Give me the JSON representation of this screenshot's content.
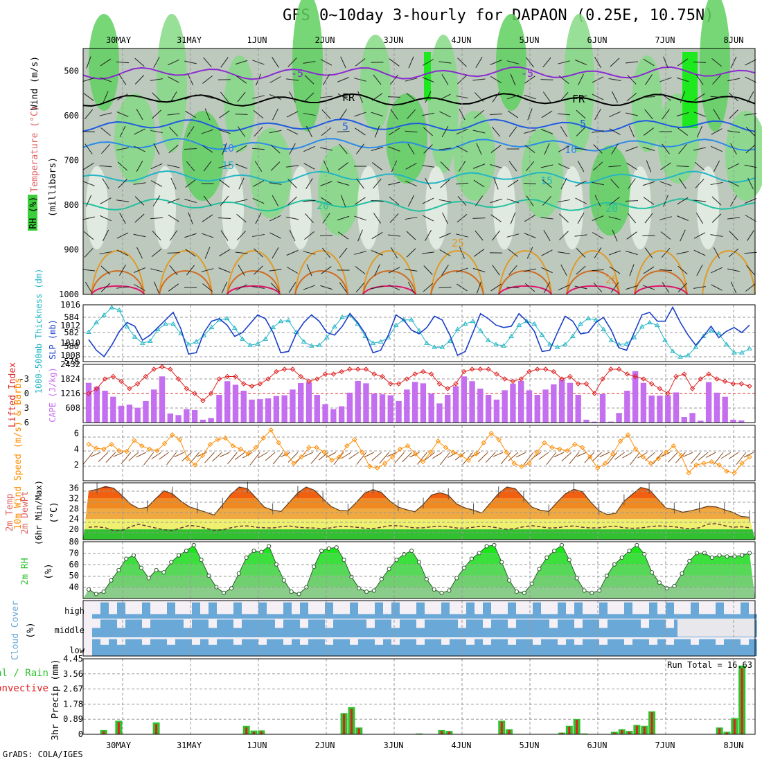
{
  "title": "GFS 0~10day 3-hourly for DAPAON (0.25E, 10.75N)",
  "credit": "GrADS: COLA/IGES",
  "colors": {
    "rh": "#2ec22e",
    "temp_lines": "#e08a1a",
    "wind": "#ff8c00",
    "cape": "#c46ef0",
    "lifted": "#e02020",
    "thick": "#20b5c5",
    "slp": "#1a3fc8",
    "cloud": "#6aa8d8",
    "precip_total": "#2ec22e",
    "precip_conv": "#e02020"
  },
  "chart_data": [
    {
      "type": "heatmap",
      "panel": "upper-air",
      "ylabel_parts": [
        "RH (%)",
        "Temperature (°C)",
        "Wind (m/s)"
      ],
      "ylabel2": "(millibars)",
      "x_ticks": [
        "30MAY",
        "31MAY",
        "1JUN",
        "2JUN",
        "3JUN",
        "4JUN",
        "5JUN",
        "6JUN",
        "7JUN",
        "8JUN"
      ],
      "y_ticks": [
        "500",
        "600",
        "700",
        "800",
        "900",
        "1000"
      ],
      "ylim": [
        1000,
        450
      ],
      "contour_labels": [
        "-5",
        "-5",
        "FR",
        "FR",
        "5",
        "5",
        "10",
        "10",
        "15",
        "15",
        "20",
        "20",
        "25",
        "25"
      ]
    },
    {
      "type": "line",
      "panel": "thickness-slp",
      "ylabel_left": "1000-500mb Thickness (dm)",
      "ylabel_right": "SLP (mb)",
      "y_left_ticks": [
        "584",
        "582",
        "580",
        "578"
      ],
      "y_right_ticks": [
        "1016",
        "1012",
        "1010",
        "1008"
      ],
      "series": [
        {
          "name": "1000-500mb Thickness (dm)",
          "values": [
            581.8,
            583.2,
            584.3,
            585.4,
            585.0,
            582.6,
            581.1,
            580.2,
            580.5,
            582.2,
            583.0,
            583.0,
            581.6,
            580.0,
            580.4,
            581.3,
            582.5,
            583.6,
            583.8,
            582.4,
            580.8,
            579.9,
            580.1,
            580.8,
            582.5,
            583.4,
            583.5,
            581.8,
            580.4,
            579.8,
            579.9,
            581.0,
            582.6,
            584.0,
            584.3,
            583.0,
            581.2,
            580.2,
            580.4,
            581.0,
            582.8,
            583.6,
            583.6,
            582.0,
            580.2,
            579.6,
            579.6,
            580.5,
            582.2,
            583.0,
            583.4,
            582.0,
            580.6,
            580.0,
            579.8,
            581.2,
            582.8,
            583.4,
            583.0,
            581.4,
            580.0,
            579.6,
            580.0,
            581.2,
            583.0,
            583.8,
            583.6,
            582.2,
            580.6,
            580.0,
            580.1,
            581.0,
            582.6,
            583.2,
            582.8,
            580.6,
            579.0,
            578.2,
            578.4,
            579.6,
            581.2,
            582.0,
            581.6,
            580.0,
            578.8,
            578.8,
            579.4
          ]
        },
        {
          "name": "SLP (mb)",
          "values": [
            1010.5,
            1008.8,
            1007.8,
            1009.6,
            1011.8,
            1013.2,
            1012.6,
            1010.4,
            1011.2,
            1012.4,
            1013.6,
            1014.8,
            1012.2,
            1008.2,
            1008.4,
            1011.6,
            1013.4,
            1013.8,
            1012.8,
            1011.0,
            1011.6,
            1013.0,
            1014.4,
            1013.8,
            1011.6,
            1008.4,
            1008.6,
            1011.4,
            1013.2,
            1014.4,
            1013.4,
            1011.6,
            1011.2,
            1012.6,
            1014.6,
            1013.2,
            1011.4,
            1008.4,
            1008.8,
            1011.2,
            1014.4,
            1013.6,
            1012.0,
            1011.4,
            1012.4,
            1014.2,
            1013.6,
            1011.2,
            1008.0,
            1008.6,
            1011.6,
            1014.6,
            1013.8,
            1012.8,
            1012.4,
            1012.6,
            1014.6,
            1013.4,
            1011.8,
            1008.6,
            1008.8,
            1011.6,
            1014.2,
            1013.4,
            1011.4,
            1011.6,
            1013.2,
            1014.0,
            1012.0,
            1009.2,
            1008.8,
            1011.6,
            1014.4,
            1014.8,
            1013.4,
            1013.4,
            1015.6,
            1013.2,
            1011.2,
            1009.6,
            1011.0,
            1012.6,
            1010.8,
            1011.8,
            1012.4,
            1011.6,
            1012.8
          ]
        }
      ]
    },
    {
      "type": "bar",
      "panel": "cape-lifted-index",
      "ylabel_left": "Lifted Index",
      "ylabel_right": "CAPE (J/kg)",
      "y_left_ticks": [
        "-3",
        "0",
        "3",
        "6"
      ],
      "y_right_ticks": [
        "2432",
        "1824",
        "1216",
        "608"
      ],
      "series": [
        {
          "name": "CAPE (J/kg)",
          "values": [
            1660,
            1500,
            1330,
            1080,
            700,
            750,
            620,
            900,
            1380,
            1930,
            380,
            310,
            560,
            520,
            120,
            190,
            1160,
            1730,
            1580,
            1330,
            960,
            980,
            1010,
            1110,
            1140,
            1380,
            1650,
            1690,
            1160,
            770,
            560,
            680,
            1250,
            1740,
            1640,
            1210,
            1180,
            1140,
            900,
            1380,
            1700,
            1640,
            1210,
            800,
            1160,
            1520,
            1930,
            1730,
            1420,
            1160,
            960,
            1350,
            1630,
            1740,
            1350,
            1160,
            1380,
            1600,
            1800,
            1660,
            1160,
            120,
            40,
            1190,
            40,
            400,
            1330,
            2150,
            1660,
            1130,
            1120,
            1140,
            1260,
            230,
            400,
            80,
            1690,
            1250,
            1080,
            120,
            90,
            0
          ]
        },
        {
          "name": "Lifted Index",
          "values": [
            0.0,
            -1.0,
            -3.0,
            -3.5,
            -2.5,
            -1.0,
            -2.0,
            -3.5,
            -5.0,
            -5.5,
            -5.0,
            -3.0,
            -1.0,
            0.0,
            1.5,
            0.0,
            -3.0,
            -3.5,
            -3.5,
            -2.0,
            -1.5,
            -2.0,
            -3.0,
            -4.5,
            -5.0,
            -5.0,
            -3.5,
            -2.5,
            -3.0,
            -4.0,
            -4.0,
            -4.5,
            -5.0,
            -5.0,
            -5.0,
            -4.0,
            -3.5,
            -2.0,
            -2.0,
            -3.0,
            -4.0,
            -4.5,
            -4.0,
            -2.0,
            -1.0,
            -2.0,
            -4.5,
            -5.0,
            -5.0,
            -5.0,
            -4.0,
            -3.0,
            -2.5,
            -3.0,
            -4.5,
            -5.0,
            -5.0,
            -4.5,
            -3.0,
            -3.5,
            -2.0,
            -2.0,
            0.0,
            -3.0,
            -5.0,
            -5.0,
            -4.0,
            -3.5,
            -3.0,
            -2.0,
            -1.0,
            0.0,
            -3.5,
            -4.0,
            -1.0,
            -3.0,
            -4.0,
            -3.0,
            -2.5,
            -2.0,
            -2.0,
            -1.5
          ]
        }
      ]
    },
    {
      "type": "line",
      "panel": "wind",
      "ylabel": "10m Wind Speed (m/s) & Barbs",
      "y_ticks": [
        "6",
        "4",
        "2"
      ],
      "ylim": [
        0,
        7
      ],
      "values": [
        4.6,
        4.1,
        4.0,
        4.6,
        3.8,
        3.7,
        5.1,
        4.4,
        4.0,
        3.8,
        4.7,
        5.8,
        5.2,
        2.8,
        2.0,
        3.2,
        4.6,
        5.2,
        5.4,
        4.4,
        4.0,
        3.4,
        4.2,
        5.4,
        6.4,
        4.8,
        3.4,
        2.2,
        3.0,
        4.2,
        4.2,
        3.6,
        2.6,
        3.0,
        4.4,
        5.2,
        3.6,
        1.8,
        1.6,
        2.2,
        3.0,
        4.0,
        4.4,
        3.4,
        2.4,
        3.6,
        5.0,
        4.2,
        3.6,
        3.2,
        2.6,
        3.4,
        4.8,
        6.0,
        5.2,
        3.6,
        2.2,
        1.8,
        2.2,
        3.6,
        4.8,
        4.2,
        4.0,
        3.8,
        4.6,
        4.2,
        3.0,
        1.6,
        2.2,
        3.4,
        5.0,
        5.8,
        4.0,
        3.0,
        2.2,
        2.8,
        3.6,
        4.4,
        3.2,
        1.0,
        2.0,
        2.2,
        2.4,
        2.0,
        1.2,
        1.0,
        2.2,
        3.0
      ]
    },
    {
      "type": "area",
      "panel": "temperature",
      "ylabel": "2m Temp 2m DewPt (6hr Min/Max) (°C)",
      "y_ticks": [
        "36",
        "32",
        "28",
        "24",
        "20"
      ],
      "ylim": [
        16,
        38
      ],
      "series": [
        {
          "name": "2m Temp",
          "values": [
            34.8,
            35.5,
            36.6,
            35.9,
            33.0,
            29.8,
            28.0,
            28.5,
            31.8,
            34.9,
            33.8,
            31.0,
            28.8,
            27.7,
            26.6,
            25.5,
            29.5,
            33.6,
            36.4,
            35.7,
            32.2,
            28.6,
            27.4,
            26.9,
            30.5,
            34.1,
            36.4,
            35.1,
            31.9,
            28.8,
            27.3,
            27.2,
            30.4,
            34.0,
            35.4,
            34.2,
            31.0,
            28.6,
            27.6,
            26.8,
            29.6,
            33.3,
            34.2,
            33.2,
            29.8,
            28.3,
            27.4,
            26.3,
            30.1,
            33.9,
            36.4,
            35.7,
            32.2,
            28.6,
            27.4,
            26.9,
            30.5,
            33.8,
            35.5,
            34.6,
            30.6,
            27.2,
            25.7,
            26.2,
            30.9,
            33.6,
            36.2,
            35.4,
            31.8,
            28.3,
            27.7,
            26.6,
            27.2,
            28.0,
            28.9,
            28.7,
            27.6,
            26.6,
            25.0,
            24.7
          ]
        },
        {
          "name": "2m DewPt",
          "values": [
            20.8,
            21.0,
            20.6,
            19.5,
            19.6,
            21.0,
            22.0,
            21.2,
            20.5,
            19.8,
            19.5,
            20.5,
            21.5,
            21.2,
            20.4,
            19.6,
            19.8,
            20.6,
            21.2,
            21.3,
            20.8,
            20.6,
            20.5,
            21.0,
            21.3,
            20.8,
            20.6,
            20.5,
            20.2,
            20.6,
            21.2,
            21.1,
            20.8,
            20.4,
            20.3,
            20.8,
            21.4,
            21.4,
            21.0,
            20.5,
            20.6,
            21.0,
            21.2,
            21.0,
            20.5,
            20.4,
            20.8,
            21.2,
            21.0,
            20.5,
            20.0,
            20.3,
            21.0,
            21.4,
            21.0,
            20.5,
            20.6,
            21.1,
            21.3,
            20.8,
            20.5,
            20.6,
            21.0,
            21.2,
            20.6,
            20.4,
            20.5,
            21.0,
            21.3,
            21.2,
            21.0,
            20.5,
            20.2,
            20.6,
            22.0,
            22.2,
            21.4,
            20.8,
            21.0,
            20.6
          ]
        }
      ]
    },
    {
      "type": "area",
      "panel": "rh",
      "ylabel": "2m RH (%)",
      "y_ticks": [
        "80",
        "70",
        "60",
        "50",
        "40"
      ],
      "ylim": [
        30,
        80
      ],
      "values": [
        38,
        34,
        36,
        46,
        55,
        65,
        68,
        57,
        48,
        55,
        53,
        62,
        68,
        72,
        77,
        64,
        50,
        40,
        35,
        39,
        52,
        66,
        72,
        71,
        76,
        60,
        46,
        36,
        34,
        40,
        58,
        72,
        74,
        75,
        64,
        49,
        39,
        36,
        37,
        47,
        56,
        64,
        69,
        72,
        62,
        47,
        38,
        35,
        37,
        48,
        57,
        65,
        70,
        76,
        77,
        62,
        46,
        36,
        35,
        43,
        56,
        66,
        72,
        77,
        64,
        48,
        37,
        35,
        37,
        50,
        60,
        66,
        72,
        77,
        69,
        53,
        44,
        39,
        41,
        52,
        63,
        70,
        70,
        66,
        68,
        67,
        67,
        68,
        70
      ]
    },
    {
      "type": "heatmap",
      "panel": "cloud-cover",
      "ylabel": "Cloud Cover (%)",
      "rows": [
        "high",
        "middle",
        "low"
      ]
    },
    {
      "type": "bar",
      "panel": "precip",
      "ylabel": "3hr Precip (mm)",
      "legend": [
        "Total / Rain",
        "Convective"
      ],
      "y_ticks": [
        "4.45",
        "3.56",
        "2.67",
        "1.78",
        "0.89",
        "0"
      ],
      "ylim": [
        0,
        4.45
      ],
      "annotation": "Run Total = 16.63",
      "series": [
        {
          "name": "Total / Rain",
          "values": [
            0,
            0,
            0.25,
            0,
            0.8,
            0,
            0,
            0,
            0,
            0.7,
            0,
            0,
            0,
            0,
            0,
            0,
            0,
            0,
            0,
            0,
            0,
            0.5,
            0.22,
            0.23,
            0,
            0,
            0,
            0,
            0,
            0,
            0,
            0,
            0,
            0,
            1.25,
            1.6,
            0.4,
            0,
            0,
            0,
            0,
            0,
            0,
            0,
            0.05,
            0,
            0,
            0.25,
            0.2,
            0,
            0,
            0,
            0,
            0,
            0,
            0.8,
            0.3,
            0,
            0,
            0,
            0,
            0,
            0,
            0.1,
            0.5,
            0.9,
            0.05,
            0,
            0,
            0,
            0.15,
            0.3,
            0.2,
            0.55,
            0.5,
            1.35,
            0,
            0,
            0,
            0,
            0,
            0,
            0,
            0,
            0.4,
            0.15,
            0.95,
            4.05,
            0
          ]
        },
        {
          "name": "Convective",
          "values": [
            0,
            0,
            0.18,
            0,
            0.72,
            0,
            0,
            0,
            0,
            0.6,
            0,
            0,
            0,
            0,
            0,
            0,
            0,
            0,
            0,
            0,
            0,
            0.4,
            0.15,
            0.18,
            0,
            0,
            0,
            0,
            0,
            0,
            0,
            0,
            0,
            0,
            1.2,
            1.5,
            0.35,
            0,
            0,
            0,
            0,
            0,
            0,
            0,
            0.03,
            0,
            0,
            0.2,
            0.15,
            0,
            0,
            0,
            0,
            0,
            0,
            0.75,
            0.25,
            0,
            0,
            0,
            0,
            0,
            0,
            0.08,
            0.45,
            0.85,
            0.03,
            0,
            0,
            0,
            0.1,
            0.25,
            0.15,
            0.5,
            0.45,
            1.3,
            0,
            0,
            0,
            0,
            0,
            0,
            0,
            0,
            0.35,
            0.1,
            0.9,
            3.9,
            0
          ]
        }
      ]
    }
  ]
}
